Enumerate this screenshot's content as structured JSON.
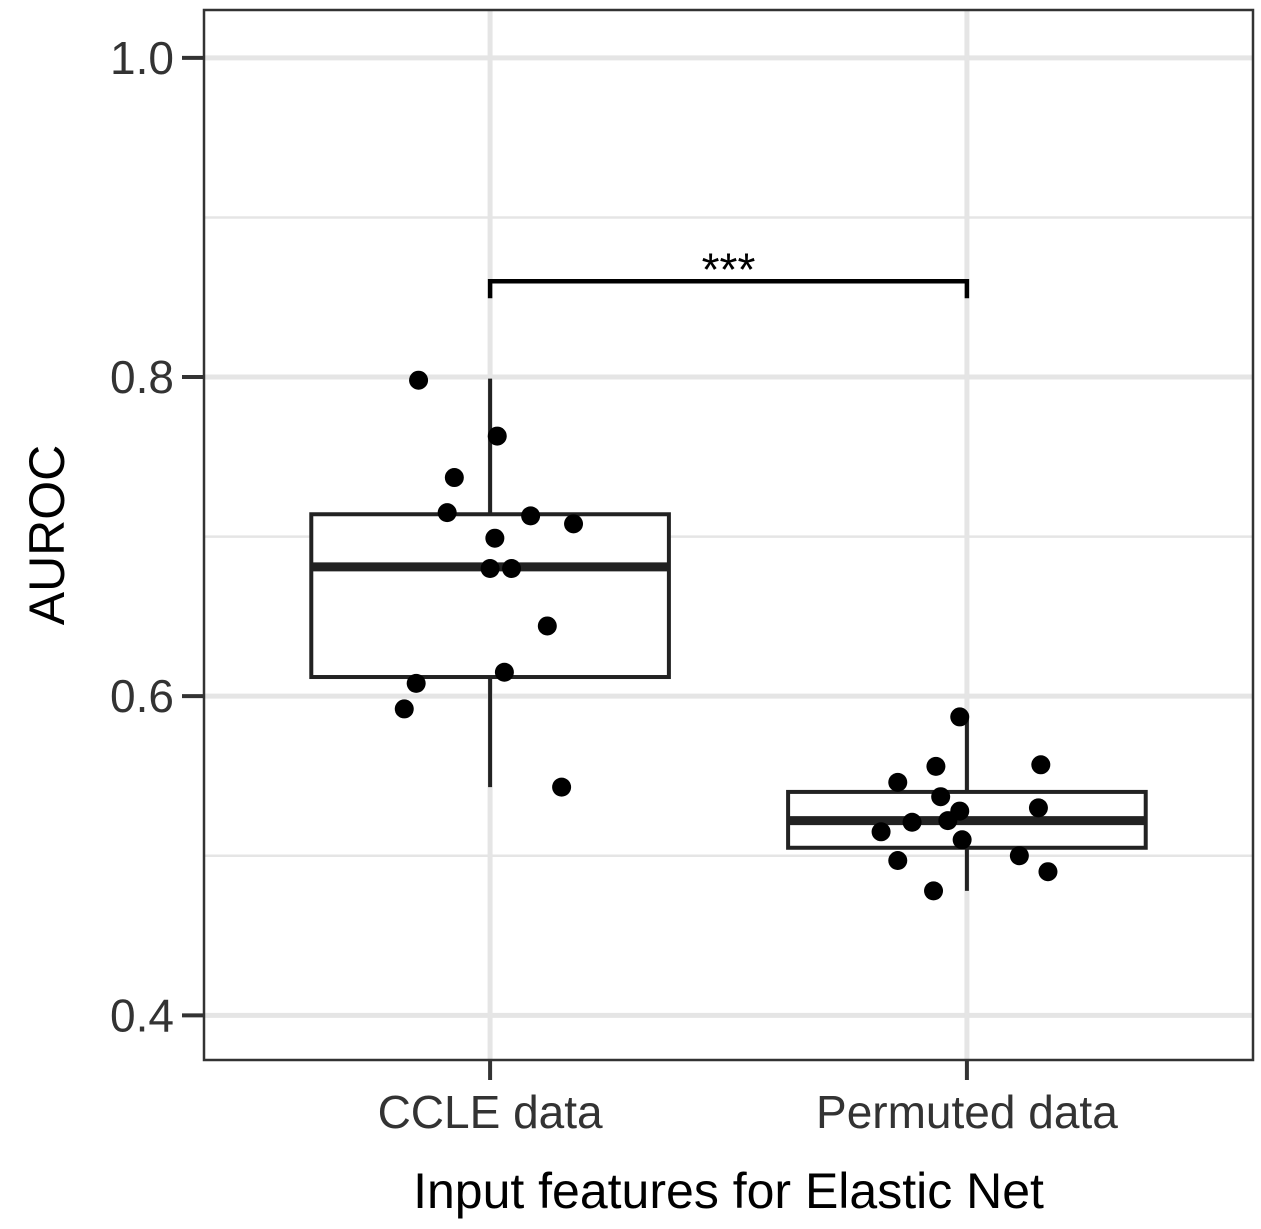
{
  "chart_data": {
    "type": "box",
    "xlabel": "Input features for Elastic Net",
    "ylabel": "AUROC",
    "ylim": [
      0.372,
      1.03
    ],
    "y_ticks": [
      "0.4",
      "0.6",
      "0.8",
      "1.0"
    ],
    "grid": true,
    "categories": [
      "CCLE data",
      "Permuted data"
    ],
    "boxes": [
      {
        "category": "CCLE data",
        "whisker_low": 0.543,
        "q1": 0.612,
        "median": 0.681,
        "q3": 0.714,
        "whisker_high": 0.799
      },
      {
        "category": "Permuted data",
        "whisker_low": 0.478,
        "q1": 0.505,
        "median": 0.522,
        "q3": 0.54,
        "whisker_high": 0.586
      }
    ],
    "points": [
      {
        "category": "CCLE data",
        "offset": -0.15,
        "y": 0.798
      },
      {
        "category": "CCLE data",
        "offset": 0.015,
        "y": 0.763
      },
      {
        "category": "CCLE data",
        "offset": -0.075,
        "y": 0.737
      },
      {
        "category": "CCLE data",
        "offset": -0.09,
        "y": 0.715
      },
      {
        "category": "CCLE data",
        "offset": 0.085,
        "y": 0.713
      },
      {
        "category": "CCLE data",
        "offset": 0.175,
        "y": 0.708
      },
      {
        "category": "CCLE data",
        "offset": 0.01,
        "y": 0.699
      },
      {
        "category": "CCLE data",
        "offset": 0.0,
        "y": 0.68
      },
      {
        "category": "CCLE data",
        "offset": 0.045,
        "y": 0.68
      },
      {
        "category": "CCLE data",
        "offset": 0.12,
        "y": 0.644
      },
      {
        "category": "CCLE data",
        "offset": 0.03,
        "y": 0.615
      },
      {
        "category": "CCLE data",
        "offset": -0.155,
        "y": 0.608
      },
      {
        "category": "CCLE data",
        "offset": -0.18,
        "y": 0.592
      },
      {
        "category": "CCLE data",
        "offset": 0.15,
        "y": 0.543
      },
      {
        "category": "Permuted data",
        "offset": -0.015,
        "y": 0.587
      },
      {
        "category": "Permuted data",
        "offset": 0.155,
        "y": 0.557
      },
      {
        "category": "Permuted data",
        "offset": -0.065,
        "y": 0.556
      },
      {
        "category": "Permuted data",
        "offset": -0.145,
        "y": 0.546
      },
      {
        "category": "Permuted data",
        "offset": -0.055,
        "y": 0.537
      },
      {
        "category": "Permuted data",
        "offset": 0.15,
        "y": 0.53
      },
      {
        "category": "Permuted data",
        "offset": -0.015,
        "y": 0.528
      },
      {
        "category": "Permuted data",
        "offset": -0.04,
        "y": 0.522
      },
      {
        "category": "Permuted data",
        "offset": -0.115,
        "y": 0.521
      },
      {
        "category": "Permuted data",
        "offset": -0.18,
        "y": 0.515
      },
      {
        "category": "Permuted data",
        "offset": -0.01,
        "y": 0.51
      },
      {
        "category": "Permuted data",
        "offset": 0.11,
        "y": 0.5
      },
      {
        "category": "Permuted data",
        "offset": -0.145,
        "y": 0.497
      },
      {
        "category": "Permuted data",
        "offset": 0.17,
        "y": 0.49
      },
      {
        "category": "Permuted data",
        "offset": -0.07,
        "y": 0.478
      }
    ],
    "significance": {
      "from": "CCLE data",
      "to": "Permuted data",
      "y": 0.86,
      "label": "***"
    },
    "colors": {
      "axis": "#333333",
      "grid": "#e5e5e5",
      "box": "#222222",
      "point": "#000000",
      "text": "#333333",
      "title": "#000000"
    }
  }
}
